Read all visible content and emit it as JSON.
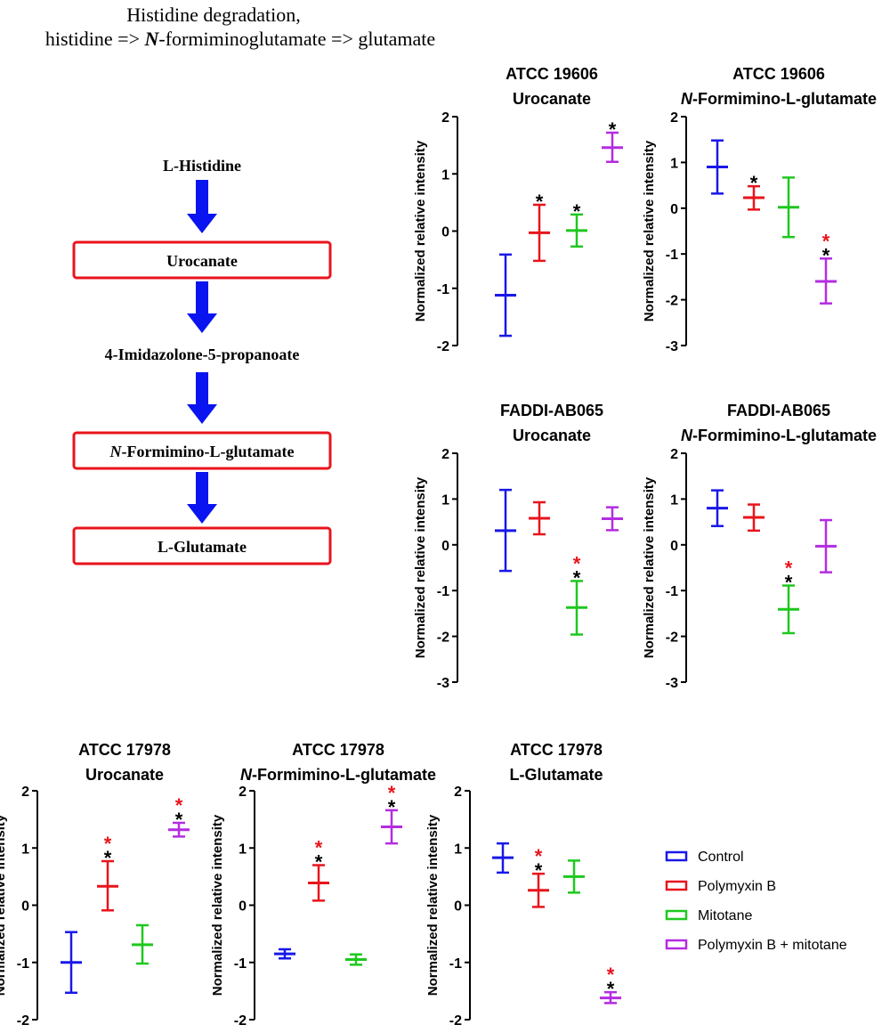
{
  "pathway": {
    "title_line1": "Histidine degradation,",
    "title_line2_a": "histidine => ",
    "title_line2_b": "N",
    "title_line2_c": "-formiminoglutamate => glutamate",
    "nodes": [
      {
        "label": "L-Histidine",
        "boxed": false
      },
      {
        "label": "Urocanate",
        "boxed": true
      },
      {
        "label": "4-Imidazolone-5-propanoate",
        "boxed": false
      },
      {
        "label_italic": "N",
        "label": "-Formimino-L-glutamate",
        "boxed": true
      },
      {
        "label": "L-Glutamate",
        "boxed": true
      }
    ],
    "arrow_color": "#0a14f0",
    "box_color": "#e8141c"
  },
  "colors": {
    "Control": "#1818e8",
    "Polymyxin B": "#e8141c",
    "Mitotane": "#1ec81e",
    "Polymyxin B + mitotane": "#b42ce0",
    "sig_black": "#000000",
    "sig_red": "#e8141c"
  },
  "legend": {
    "position": "right",
    "entries": [
      "Control",
      "Polymyxin B",
      "Mitotane",
      "Polymyxin B + mitotane"
    ]
  },
  "chart_data": [
    {
      "type": "errorbar",
      "title_line1": "ATCC 19606",
      "title_line2": "Urocanate",
      "ylabel": "Normalized relative intensity",
      "ylim": [
        -2,
        2
      ],
      "yticks": [
        "2",
        "1",
        "0",
        "-1",
        "-2"
      ],
      "series": [
        {
          "name": "Control",
          "mean": -1.12,
          "low": -1.83,
          "high": -0.41,
          "sig": []
        },
        {
          "name": "Polymyxin B",
          "mean": -0.03,
          "low": -0.52,
          "high": 0.46,
          "sig": [
            "black"
          ]
        },
        {
          "name": "Mitotane",
          "mean": 0.01,
          "low": -0.27,
          "high": 0.29,
          "sig": [
            "black"
          ]
        },
        {
          "name": "Polymyxin B + mitotane",
          "mean": 1.46,
          "low": 1.21,
          "high": 1.72,
          "sig": [
            "black"
          ]
        }
      ]
    },
    {
      "type": "errorbar",
      "title_line1": "ATCC 19606",
      "title_line2_italic": "N",
      "title_line2": "-Formimino-L-glutamate",
      "ylabel": "Normalized relative intensity",
      "ylim": [
        -3,
        2
      ],
      "yticks": [
        "2",
        "1",
        "0",
        "-1",
        "-2",
        "-3"
      ],
      "series": [
        {
          "name": "Control",
          "mean": 0.9,
          "low": 0.32,
          "high": 1.48,
          "sig": []
        },
        {
          "name": "Polymyxin B",
          "mean": 0.23,
          "low": -0.03,
          "high": 0.48,
          "sig": [
            "black"
          ]
        },
        {
          "name": "Mitotane",
          "mean": 0.02,
          "low": -0.63,
          "high": 0.67,
          "sig": []
        },
        {
          "name": "Polymyxin B + mitotane",
          "mean": -1.6,
          "low": -2.08,
          "high": -1.1,
          "sig": [
            "red",
            "black"
          ]
        }
      ]
    },
    {
      "type": "errorbar",
      "title_line1": "FADDI-AB065",
      "title_line2": "Urocanate",
      "ylabel": "Normalized relative intensity",
      "ylim": [
        -3,
        2
      ],
      "yticks": [
        "2",
        "1",
        "0",
        "-1",
        "-2",
        "-3"
      ],
      "series": [
        {
          "name": "Control",
          "mean": 0.31,
          "low": -0.57,
          "high": 1.2,
          "sig": []
        },
        {
          "name": "Polymyxin B",
          "mean": 0.58,
          "low": 0.23,
          "high": 0.93,
          "sig": []
        },
        {
          "name": "Mitotane",
          "mean": -1.37,
          "low": -1.96,
          "high": -0.79,
          "sig": [
            "red",
            "black"
          ]
        },
        {
          "name": "Polymyxin B + mitotane",
          "mean": 0.57,
          "low": 0.32,
          "high": 0.82,
          "sig": []
        }
      ]
    },
    {
      "type": "errorbar",
      "title_line1": "FADDI-AB065",
      "title_line2_italic": "N",
      "title_line2": "-Formimino-L-glutamate",
      "ylabel": "Normalized relative intensity",
      "ylim": [
        -3,
        2
      ],
      "yticks": [
        "2",
        "1",
        "0",
        "-1",
        "-2",
        "-3"
      ],
      "series": [
        {
          "name": "Control",
          "mean": 0.8,
          "low": 0.41,
          "high": 1.19,
          "sig": []
        },
        {
          "name": "Polymyxin B",
          "mean": 0.6,
          "low": 0.31,
          "high": 0.88,
          "sig": []
        },
        {
          "name": "Mitotane",
          "mean": -1.41,
          "low": -1.93,
          "high": -0.89,
          "sig": [
            "red",
            "black"
          ]
        },
        {
          "name": "Polymyxin B + mitotane",
          "mean": -0.03,
          "low": -0.6,
          "high": 0.54,
          "sig": []
        }
      ]
    },
    {
      "type": "errorbar",
      "title_line1": "ATCC 17978",
      "title_line2": "Urocanate",
      "ylabel": "Normalized relative intensity",
      "ylim": [
        -2,
        2
      ],
      "yticks": [
        "2",
        "1",
        "0",
        "-1",
        "-2"
      ],
      "series": [
        {
          "name": "Control",
          "mean": -1.0,
          "low": -1.53,
          "high": -0.47,
          "sig": []
        },
        {
          "name": "Polymyxin B",
          "mean": 0.33,
          "low": -0.09,
          "high": 0.77,
          "sig": [
            "red",
            "black"
          ]
        },
        {
          "name": "Mitotane",
          "mean": -0.69,
          "low": -1.02,
          "high": -0.35,
          "sig": []
        },
        {
          "name": "Polymyxin B + mitotane",
          "mean": 1.32,
          "low": 1.2,
          "high": 1.44,
          "sig": [
            "red",
            "black"
          ]
        }
      ]
    },
    {
      "type": "errorbar",
      "title_line1": "ATCC 17978",
      "title_line2_italic": "N",
      "title_line2": "-Formimino-L-glutamate",
      "ylabel": "Normalized relative intensity",
      "ylim": [
        -2,
        2
      ],
      "yticks": [
        "2",
        "1",
        "0",
        "-1",
        "-2"
      ],
      "series": [
        {
          "name": "Control",
          "mean": -0.85,
          "low": -0.93,
          "high": -0.77,
          "sig": []
        },
        {
          "name": "Polymyxin B",
          "mean": 0.39,
          "low": 0.08,
          "high": 0.7,
          "sig": [
            "red",
            "black"
          ]
        },
        {
          "name": "Mitotane",
          "mean": -0.95,
          "low": -1.04,
          "high": -0.86,
          "sig": []
        },
        {
          "name": "Polymyxin B + mitotane",
          "mean": 1.37,
          "low": 1.08,
          "high": 1.66,
          "sig": [
            "red",
            "black"
          ]
        }
      ]
    },
    {
      "type": "errorbar",
      "title_line1": "ATCC 17978",
      "title_line2": "L-Glutamate",
      "ylabel": "Normalized relative intensity",
      "ylim": [
        -2,
        2
      ],
      "yticks": [
        "2",
        "1",
        "0",
        "-1",
        "-2"
      ],
      "series": [
        {
          "name": "Control",
          "mean": 0.83,
          "low": 0.57,
          "high": 1.08,
          "sig": []
        },
        {
          "name": "Polymyxin B",
          "mean": 0.26,
          "low": -0.03,
          "high": 0.55,
          "sig": [
            "red",
            "black"
          ]
        },
        {
          "name": "Mitotane",
          "mean": 0.5,
          "low": 0.22,
          "high": 0.78,
          "sig": []
        },
        {
          "name": "Polymyxin B + mitotane",
          "mean": -1.62,
          "low": -1.71,
          "high": -1.52,
          "sig": [
            "red",
            "black"
          ]
        }
      ]
    }
  ]
}
